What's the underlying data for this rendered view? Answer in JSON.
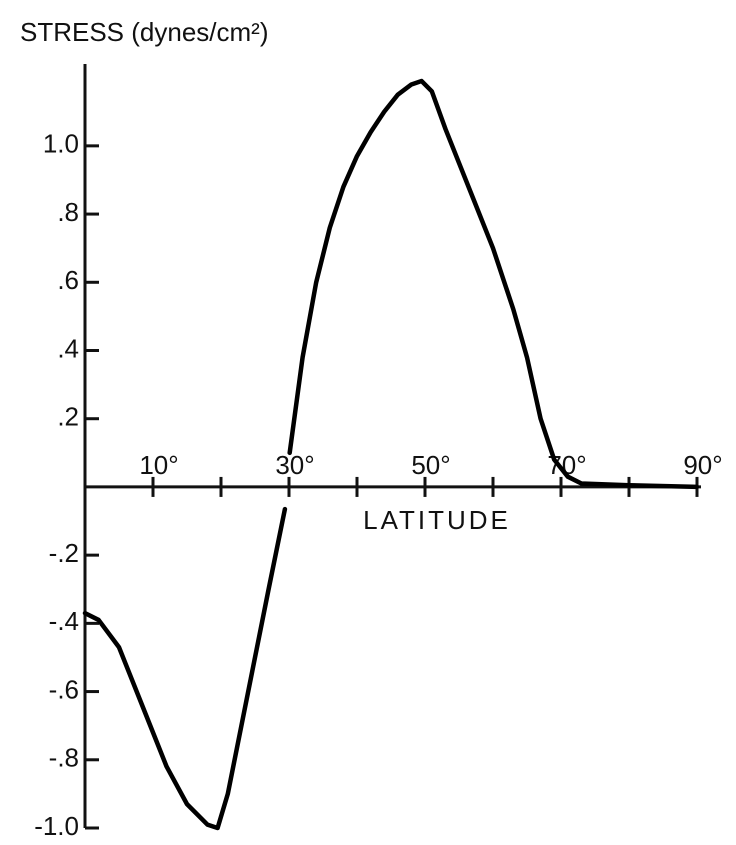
{
  "chart_data": {
    "type": "line",
    "title": "STRESS (dynes/cm²)",
    "x_label": "LATITUDE",
    "x": [
      0,
      2,
      5,
      8,
      10,
      12,
      15,
      18,
      19.5,
      21,
      23,
      25,
      27,
      29.4,
      29.7,
      30.1,
      32,
      34,
      36,
      38,
      40,
      42,
      44,
      46,
      48,
      49.5,
      51,
      53,
      55,
      57,
      60,
      63,
      65,
      67,
      69,
      71,
      73,
      80,
      90
    ],
    "series": [
      {
        "name": "Stress",
        "color": "#000000",
        "values": [
          -0.37,
          -0.39,
          -0.47,
          -0.62,
          -0.72,
          -0.82,
          -0.93,
          -0.99,
          -1.0,
          -0.9,
          -0.7,
          -0.5,
          -0.3,
          -0.065,
          null,
          0.1,
          0.38,
          0.6,
          0.76,
          0.88,
          0.97,
          1.04,
          1.1,
          1.15,
          1.18,
          1.19,
          1.16,
          1.05,
          0.95,
          0.85,
          0.7,
          0.52,
          0.38,
          0.2,
          0.08,
          0.03,
          0.01,
          0.005,
          0
        ]
      }
    ],
    "xlim": [
      0,
      90
    ],
    "ylim": [
      -1.0,
      1.24
    ],
    "xticks": [
      {
        "value": 10,
        "label": "10°"
      },
      {
        "value": 30,
        "label": "30°"
      },
      {
        "value": 50,
        "label": "50°"
      },
      {
        "value": 70,
        "label": "70°"
      },
      {
        "value": 90,
        "label": "90°"
      }
    ],
    "minor_xticks": [
      20,
      40,
      60,
      80
    ],
    "yticks": [
      {
        "value": 1.0,
        "label": "1.0"
      },
      {
        "value": 0.8,
        "label": ".8"
      },
      {
        "value": 0.6,
        "label": ".6"
      },
      {
        "value": 0.4,
        "label": ".4"
      },
      {
        "value": 0.2,
        "label": ".2"
      },
      {
        "value": -0.2,
        "label": "-.2"
      },
      {
        "value": -0.4,
        "label": "-.4"
      },
      {
        "value": -0.6,
        "label": "-.6"
      },
      {
        "value": -0.8,
        "label": "-.8"
      },
      {
        "value": -1.0,
        "label": "-1.0"
      }
    ],
    "grid": false
  }
}
